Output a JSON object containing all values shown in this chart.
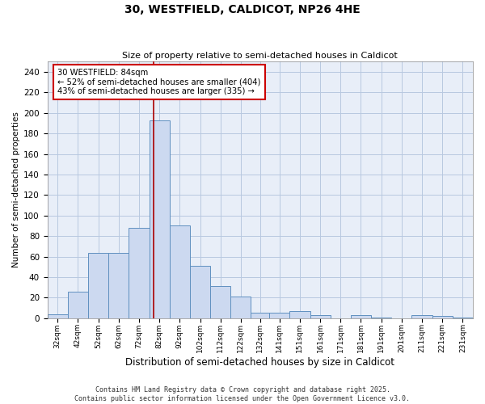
{
  "title": "30, WESTFIELD, CALDICOT, NP26 4HE",
  "subtitle": "Size of property relative to semi-detached houses in Caldicot",
  "xlabel": "Distribution of semi-detached houses by size in Caldicot",
  "ylabel": "Number of semi-detached properties",
  "bar_color": "#ccd9f0",
  "bar_edge_color": "#6090c0",
  "grid_color": "#b8c8e0",
  "background_color": "#e8eef8",
  "vline_value": 84,
  "vline_color": "#aa0000",
  "annotation_text": "30 WESTFIELD: 84sqm\n← 52% of semi-detached houses are smaller (404)\n43% of semi-detached houses are larger (335) →",
  "annotation_box_color": "#ffffff",
  "annotation_box_edge": "#cc0000",
  "bins": [
    32,
    42,
    52,
    62,
    72,
    82,
    92,
    102,
    112,
    122,
    132,
    141,
    151,
    161,
    171,
    181,
    191,
    201,
    211,
    221,
    231,
    241
  ],
  "bin_labels": [
    "32sqm",
    "42sqm",
    "52sqm",
    "62sqm",
    "72sqm",
    "82sqm",
    "92sqm",
    "102sqm",
    "112sqm",
    "122sqm",
    "132sqm",
    "141sqm",
    "151sqm",
    "161sqm",
    "171sqm",
    "181sqm",
    "191sqm",
    "201sqm",
    "211sqm",
    "221sqm",
    "231sqm"
  ],
  "values": [
    4,
    26,
    64,
    64,
    88,
    193,
    90,
    51,
    31,
    21,
    5,
    5,
    7,
    3,
    0,
    3,
    1,
    0,
    3,
    2,
    1
  ],
  "ylim": [
    0,
    250
  ],
  "yticks": [
    0,
    20,
    40,
    60,
    80,
    100,
    120,
    140,
    160,
    180,
    200,
    220,
    240
  ],
  "footer_line1": "Contains HM Land Registry data © Crown copyright and database right 2025.",
  "footer_line2": "Contains public sector information licensed under the Open Government Licence v3.0."
}
